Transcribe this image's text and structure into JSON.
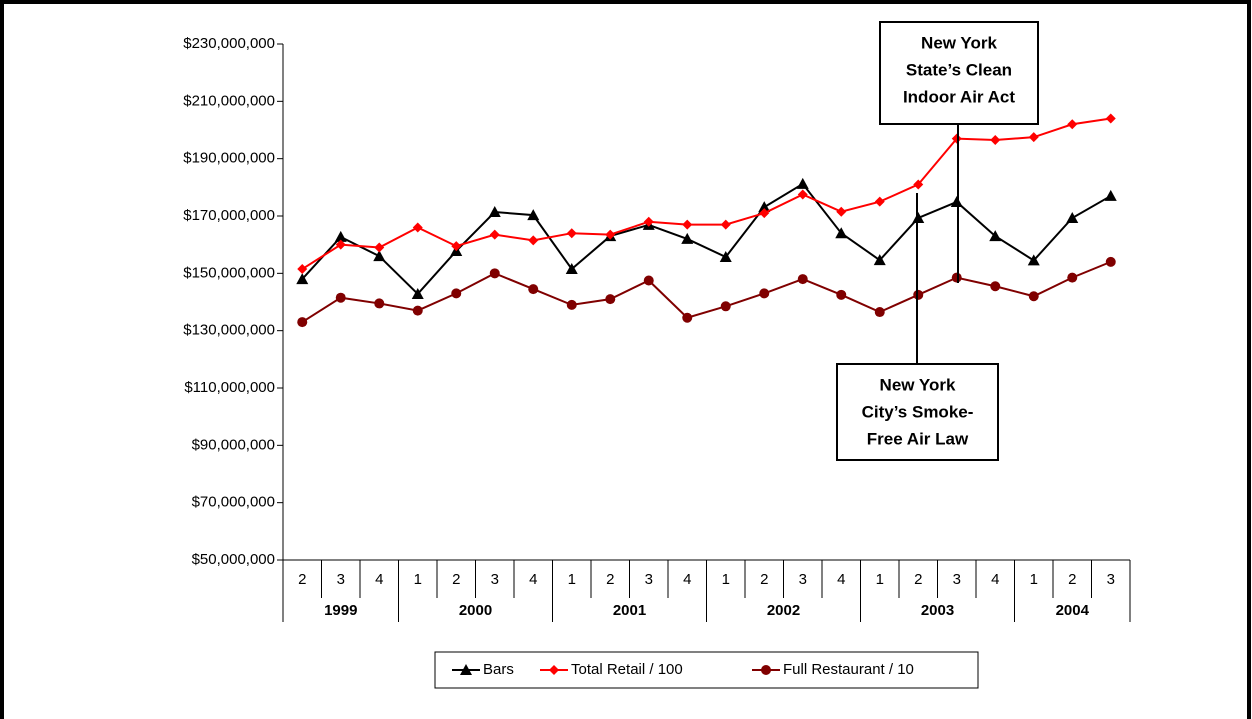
{
  "chart_data": {
    "type": "line",
    "groups": [
      {
        "name": "1999",
        "categories": [
          "2",
          "3",
          "4"
        ]
      },
      {
        "name": "2000",
        "categories": [
          "1",
          "2",
          "3",
          "4"
        ]
      },
      {
        "name": "2001",
        "categories": [
          "1",
          "2",
          "3",
          "4"
        ]
      },
      {
        "name": "2002",
        "categories": [
          "1",
          "2",
          "3",
          "4"
        ]
      },
      {
        "name": "2003",
        "categories": [
          "1",
          "2",
          "3",
          "4"
        ]
      },
      {
        "name": "2004",
        "categories": [
          "1",
          "2",
          "3"
        ]
      }
    ],
    "series": [
      {
        "name": "Bars",
        "color": "#000000",
        "marker": "triangle",
        "values": [
          148000000,
          162700000,
          156000000,
          142800000,
          157800000,
          171400000,
          170300000,
          151500000,
          163000000,
          166900000,
          162000000,
          155700000,
          173100000,
          181200000,
          164000000,
          154600000,
          169300000,
          174900000,
          163000000,
          154500000,
          169300000,
          177000000
        ]
      },
      {
        "name": "Total Retail / 100",
        "color": "#ff0000",
        "marker": "diamond",
        "values": [
          151500000,
          160000000,
          159000000,
          166000000,
          159500000,
          163500000,
          161500000,
          164000000,
          163500000,
          168000000,
          167000000,
          167000000,
          171000000,
          177500000,
          171500000,
          175000000,
          181000000,
          197000000,
          196500000,
          197500000,
          202000000,
          204000000
        ]
      },
      {
        "name": "Full Restaurant / 10",
        "color": "#800000",
        "marker": "circle",
        "values": [
          133000000,
          141500000,
          139500000,
          137000000,
          143000000,
          150000000,
          144500000,
          139000000,
          141000000,
          147500000,
          134500000,
          138500000,
          143000000,
          148000000,
          142500000,
          136500000,
          142500000,
          148500000,
          145500000,
          142000000,
          148500000,
          154000000
        ]
      }
    ],
    "ylim": [
      50000000,
      230000000
    ],
    "yticks": [
      {
        "value": 50000000,
        "label": "$50,000,000"
      },
      {
        "value": 70000000,
        "label": "$70,000,000"
      },
      {
        "value": 90000000,
        "label": "$90,000,000"
      },
      {
        "value": 110000000,
        "label": "$110,000,000"
      },
      {
        "value": 130000000,
        "label": "$130,000,000"
      },
      {
        "value": 150000000,
        "label": "$150,000,000"
      },
      {
        "value": 170000000,
        "label": "$170,000,000"
      },
      {
        "value": 190000000,
        "label": "$190,000,000"
      },
      {
        "value": 210000000,
        "label": "$210,000,000"
      },
      {
        "value": 230000000,
        "label": "$230,000,000"
      }
    ],
    "annotations": [
      {
        "lines": [
          "New York",
          "State’s Clean",
          "Indoor Air Act"
        ]
      },
      {
        "lines": [
          "New York",
          "City’s Smoke-",
          "Free Air Law"
        ]
      }
    ]
  }
}
